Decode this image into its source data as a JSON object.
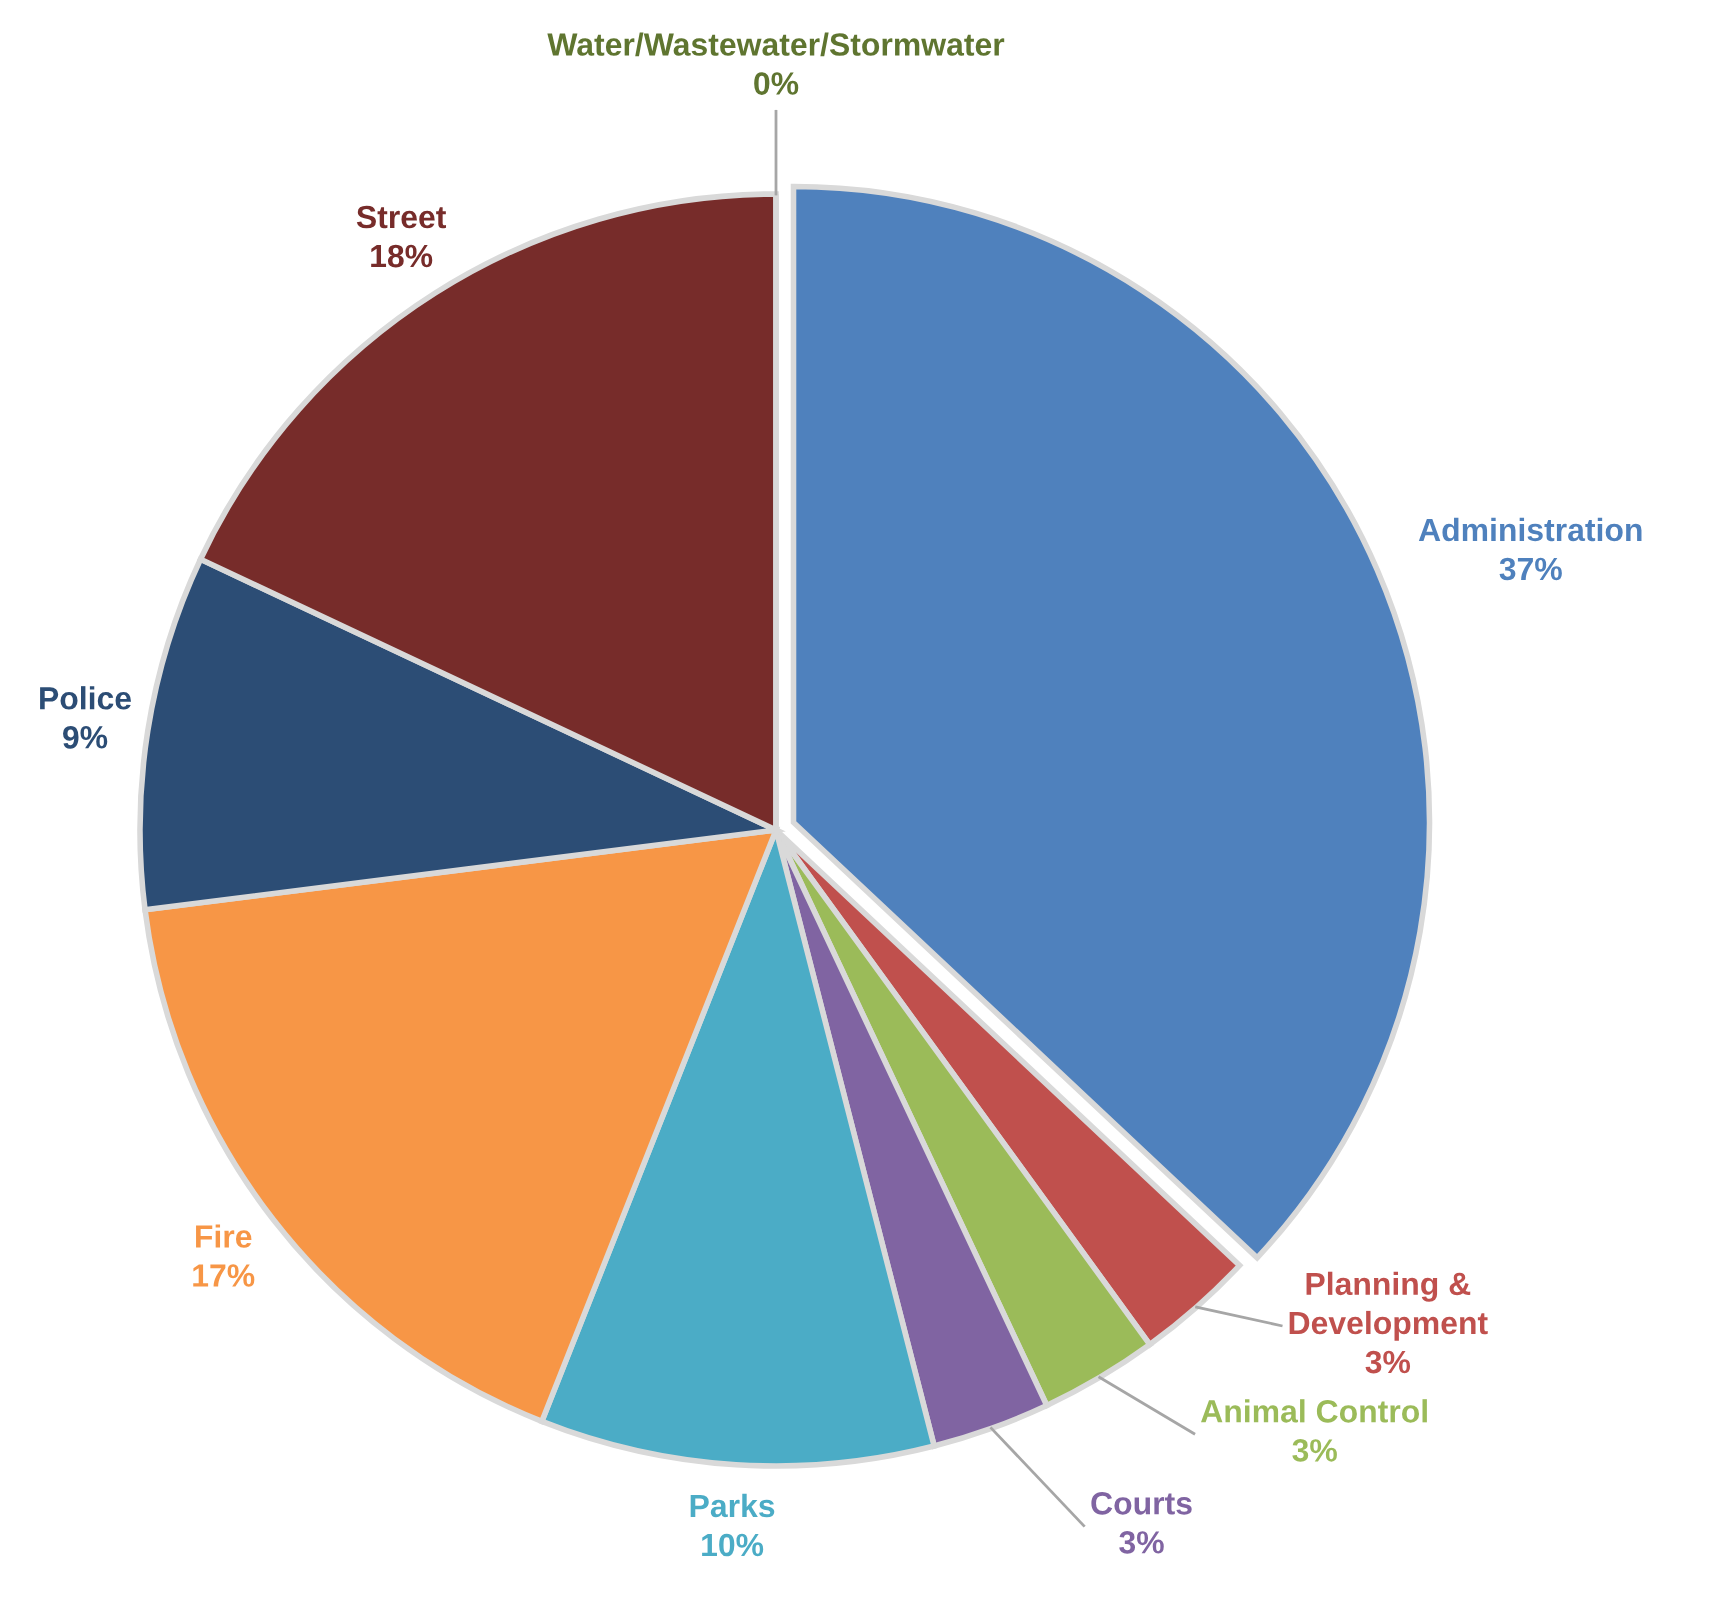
{
  "chart_data": {
    "type": "pie",
    "categories": [
      "Administration",
      "Planning &\nDevelopment",
      "Animal Control",
      "Courts",
      "Parks",
      "Fire",
      "Police",
      "Street",
      "Water/Wastewater/Stormwater"
    ],
    "values": [
      37,
      3,
      3,
      3,
      10,
      17,
      9,
      18,
      0
    ],
    "value_labels": [
      "37%",
      "3%",
      "3%",
      "3%",
      "10%",
      "17%",
      "9%",
      "18%",
      "0%"
    ],
    "colors": [
      "#4f81bd",
      "#c0504d",
      "#9bbb59",
      "#8064a2",
      "#4bacc6",
      "#f79646",
      "#2c4d75",
      "#772c2a",
      "#5f7530"
    ],
    "legend": false
  }
}
